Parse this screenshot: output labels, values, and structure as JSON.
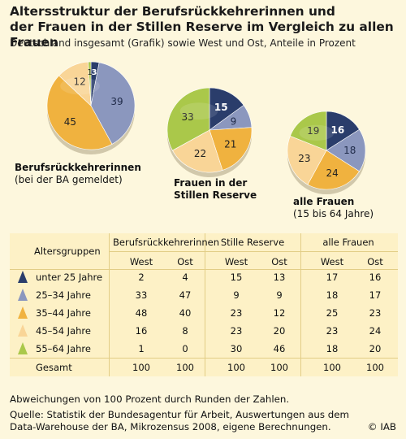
{
  "title_line1": "Altersstruktur der Berufsrückkehrerinnen und",
  "title_line2": "der Frauen in der Stillen Reserve im Vergleich zu allen Frauen",
  "subtitle": "Deutschland insgesamt (Grafik) sowie West und Ost, Anteile in Prozent",
  "chart_data": {
    "type": "pie",
    "categories": [
      "unter 25 Jahre",
      "25–34 Jahre",
      "35–44 Jahre",
      "45–54 Jahre",
      "55–64 Jahre"
    ],
    "colors": [
      "#2a3d6b",
      "#8b97be",
      "#f0b23f",
      "#f9d597",
      "#aac84a"
    ],
    "pies": [
      {
        "label_bold": "Berufsrückkehrerinnen",
        "label_normal": "(bei der BA gemeldet)",
        "values": [
          3,
          39,
          45,
          12,
          1
        ],
        "display": [
          "3",
          "39",
          "45",
          "12",
          "1"
        ]
      },
      {
        "label_bold": "Frauen in der",
        "label_bold2": "Stillen Reserve",
        "values": [
          15,
          9,
          21,
          22,
          33
        ],
        "display": [
          "15",
          "9",
          "21",
          "22",
          "33"
        ]
      },
      {
        "label_bold": "alle Frauen",
        "label_normal": "(15 bis 64 Jahre)",
        "values": [
          16,
          18,
          24,
          23,
          19
        ],
        "display": [
          "16",
          "18",
          "24",
          "23",
          "19"
        ]
      }
    ]
  },
  "table": {
    "header_group": "Altersgruppen",
    "columns": [
      "Berufsrückkehrerinnen",
      "Stille Reserve",
      "alle Frauen"
    ],
    "subcolumns": [
      "West",
      "Ost"
    ],
    "rows": [
      {
        "label": "unter 25 Jahre",
        "values": [
          "2",
          "4",
          "15",
          "13",
          "17",
          "16"
        ]
      },
      {
        "label": "25–34 Jahre",
        "values": [
          "33",
          "47",
          "9",
          "9",
          "18",
          "17"
        ]
      },
      {
        "label": "35–44 Jahre",
        "values": [
          "48",
          "40",
          "23",
          "12",
          "25",
          "23"
        ]
      },
      {
        "label": "45–54 Jahre",
        "values": [
          "16",
          "8",
          "23",
          "20",
          "23",
          "24"
        ]
      },
      {
        "label": "55–64 Jahre",
        "values": [
          "1",
          "0",
          "30",
          "46",
          "18",
          "20"
        ]
      }
    ],
    "total": {
      "label": "Gesamt",
      "values": [
        "100",
        "100",
        "100",
        "100",
        "100",
        "100"
      ]
    }
  },
  "note": "Abweichungen von 100 Prozent durch Runden der Zahlen.",
  "source_line1": "Quelle: Statistik der Bundesagentur für Arbeit, Auswertungen aus dem",
  "source_line2": "Data-Warehouse der BA, Mikrozensus 2008, eigene Berechnungen.",
  "copyright": "© IAB"
}
